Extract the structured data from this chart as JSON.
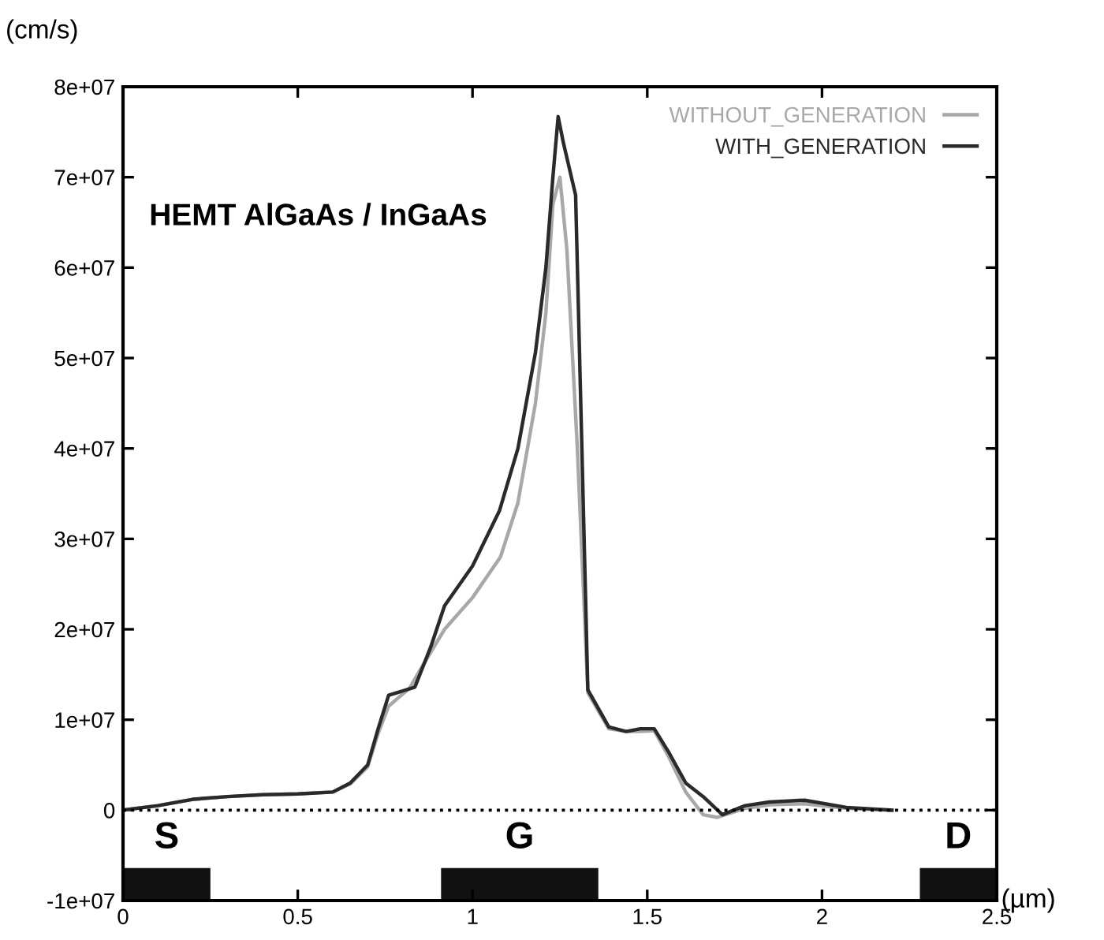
{
  "chart_data": {
    "type": "line",
    "ylabel": "(cm/s)",
    "xlabel": "(µm)",
    "annotations": [
      "HEMT AlGaAs / InGaAs",
      "S",
      "G",
      "D"
    ],
    "xlim": [
      0,
      2.5
    ],
    "xticks": [
      0,
      0.5,
      1,
      1.5,
      2,
      2.5
    ],
    "ylim": [
      -10000000,
      80000000
    ],
    "yticks": [
      {
        "value": -10000000,
        "label": "-1e+07"
      },
      {
        "value": 0,
        "label": "0"
      },
      {
        "value": 10000000,
        "label": "1e+07"
      },
      {
        "value": 20000000,
        "label": "2e+07"
      },
      {
        "value": 30000000,
        "label": "3e+07"
      },
      {
        "value": 40000000,
        "label": "4e+07"
      },
      {
        "value": 50000000,
        "label": "5e+07"
      },
      {
        "value": 60000000,
        "label": "6e+07"
      },
      {
        "value": 70000000,
        "label": "7e+07"
      },
      {
        "value": 80000000,
        "label": "8e+07"
      }
    ],
    "grid": false,
    "legend": "top right",
    "marker": "none",
    "line_style": "solid",
    "ref_lines": [
      {
        "axis": "y",
        "value": 0,
        "color": "#000000",
        "line_style": "dotted"
      }
    ],
    "series": [
      {
        "name": "WITHOUT_GENERATION",
        "color": "#a8a8a8",
        "x": [
          0,
          0.1,
          0.2,
          0.3,
          0.4,
          0.5,
          0.6,
          0.65,
          0.7,
          0.73,
          0.76,
          0.82,
          0.85,
          0.92,
          1.0,
          1.08,
          1.13,
          1.18,
          1.21,
          1.23,
          1.25,
          1.27,
          1.3,
          1.33,
          1.39,
          1.44,
          1.48,
          1.52,
          1.56,
          1.61,
          1.66,
          1.7,
          1.78,
          1.85,
          1.95,
          2.07,
          2.2
        ],
        "values": [
          0,
          500000,
          1200000,
          1500000,
          1700000,
          1800000,
          2000000,
          2900000,
          4800000,
          8500000,
          11500000,
          13500000,
          15500000,
          20000000,
          23500000,
          28000000,
          34000000,
          45000000,
          55000000,
          67000000,
          70000000,
          62000000,
          40000000,
          13000000,
          9000000,
          8700000,
          8700000,
          8800000,
          6000000,
          2000000,
          -500000,
          -800000,
          200000,
          600000,
          700000,
          200000,
          0
        ]
      },
      {
        "name": "WITH_GENERATION",
        "color": "#2a2a2a",
        "x": [
          0,
          0.1,
          0.2,
          0.3,
          0.4,
          0.5,
          0.6,
          0.65,
          0.7,
          0.73,
          0.76,
          0.835,
          0.88,
          0.92,
          1.0,
          1.077,
          1.13,
          1.18,
          1.21,
          1.23,
          1.245,
          1.26,
          1.295,
          1.33,
          1.39,
          1.44,
          1.48,
          1.52,
          1.56,
          1.61,
          1.66,
          1.715,
          1.78,
          1.85,
          1.95,
          2.07,
          2.2
        ],
        "values": [
          0,
          500000,
          1200000,
          1500000,
          1700000,
          1800000,
          2000000,
          3000000,
          5000000,
          9000000,
          12700000,
          13600000,
          18000000,
          22600000,
          27000000,
          33100000,
          40000000,
          50600000,
          60000000,
          70000000,
          76700000,
          73800000,
          68000000,
          13300000,
          9200000,
          8700000,
          9000000,
          9000000,
          6500000,
          3000000,
          1500000,
          -500000,
          500000,
          900000,
          1100000,
          300000,
          0
        ]
      }
    ]
  }
}
